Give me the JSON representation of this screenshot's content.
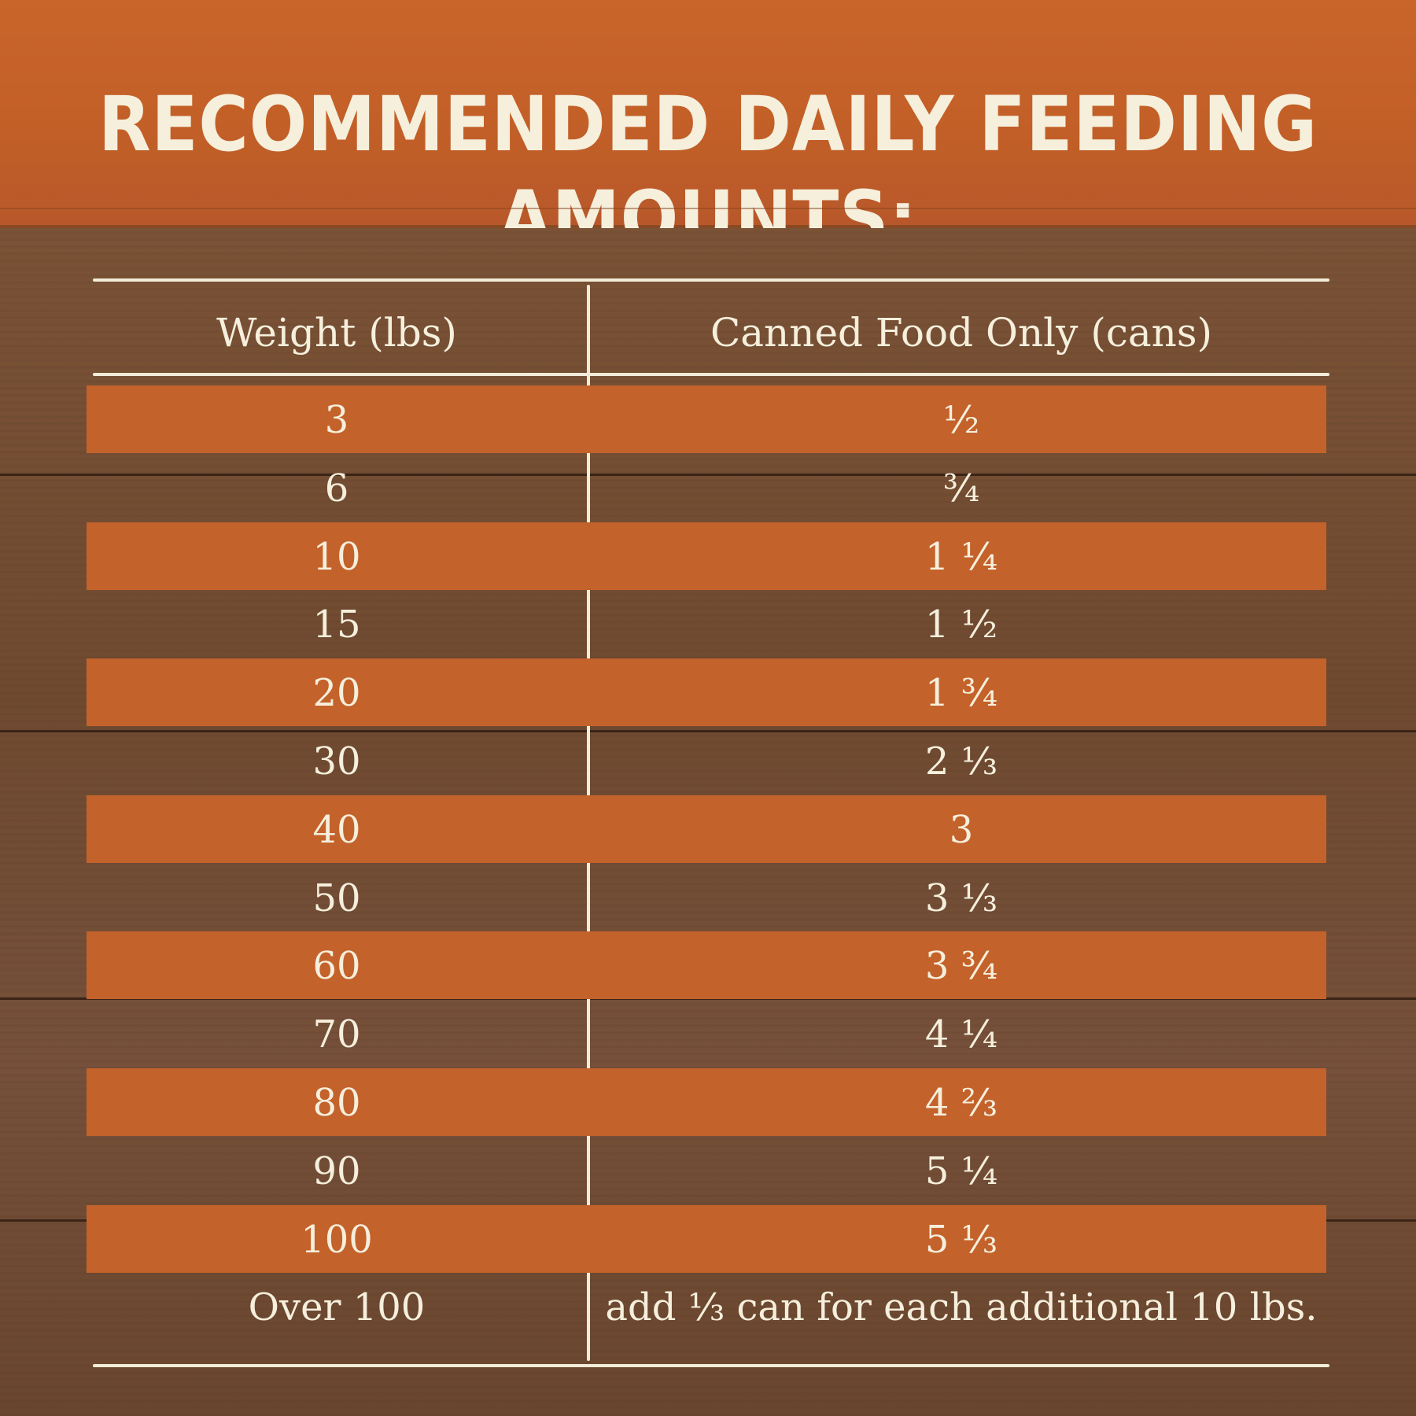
{
  "title": "RECOMMENDED DAILY FEEDING AMOUNTS:",
  "table": {
    "headers": [
      "Weight (lbs)",
      "Canned Food Only (cans)"
    ],
    "rows": [
      {
        "weight": "3",
        "cans": "½"
      },
      {
        "weight": "6",
        "cans": "¾"
      },
      {
        "weight": "10",
        "cans": "1 ¼"
      },
      {
        "weight": "15",
        "cans": "1 ½"
      },
      {
        "weight": "20",
        "cans": "1 ¾"
      },
      {
        "weight": "30",
        "cans": "2 ⅓"
      },
      {
        "weight": "40",
        "cans": "3"
      },
      {
        "weight": "50",
        "cans": "3 ⅓"
      },
      {
        "weight": "60",
        "cans": "3 ¾"
      },
      {
        "weight": "70",
        "cans": "4 ¼"
      },
      {
        "weight": "80",
        "cans": "4 ⅔"
      },
      {
        "weight": "90",
        "cans": "5 ¼"
      },
      {
        "weight": "100",
        "cans": "5 ⅓"
      },
      {
        "weight": "Over 100",
        "cans": "add ⅓ can for each additional 10 lbs."
      }
    ]
  },
  "colors": {
    "header_orange": "#c9652a",
    "band_orange": "#c4622b",
    "wood_brown": "#6e4a30",
    "cream_text": "#f5efdc"
  }
}
